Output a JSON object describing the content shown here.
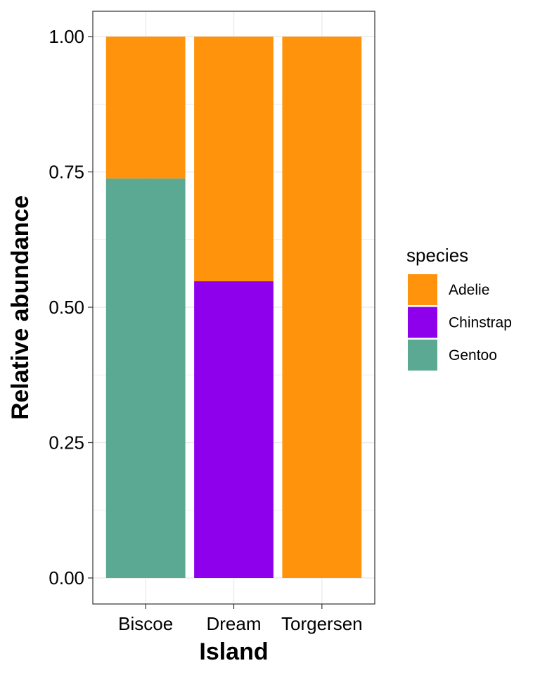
{
  "chart_data": {
    "type": "bar",
    "stacked": true,
    "position": "fill",
    "xlabel": "Island",
    "ylabel": "Relative abundance",
    "categories": [
      "Biscoe",
      "Dream",
      "Torgersen"
    ],
    "ylim": [
      0,
      1
    ],
    "yticks": [
      "0.00",
      "0.25",
      "0.50",
      "0.75",
      "1.00"
    ],
    "ytick_values": [
      0,
      0.25,
      0.5,
      0.75,
      1.0
    ],
    "grid": true,
    "legend": {
      "title": "species",
      "position": "right"
    },
    "series": [
      {
        "name": "Gentoo",
        "color": "#5BA893",
        "values": [
          0.738,
          0,
          0
        ]
      },
      {
        "name": "Chinstrap",
        "color": "#8E00EC",
        "values": [
          0,
          0.548,
          0
        ]
      },
      {
        "name": "Adelie",
        "color": "#FF930B",
        "values": [
          0.262,
          0.452,
          1.0
        ]
      }
    ],
    "legend_order": [
      "Adelie",
      "Chinstrap",
      "Gentoo"
    ]
  }
}
